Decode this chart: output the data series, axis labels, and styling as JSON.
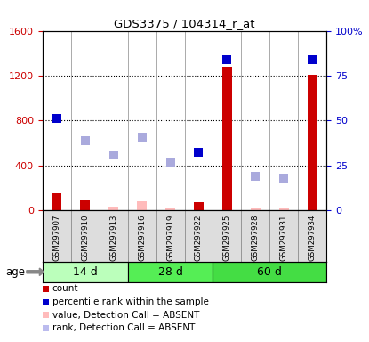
{
  "title": "GDS3375 / 104314_r_at",
  "samples": [
    "GSM297907",
    "GSM297910",
    "GSM297913",
    "GSM297916",
    "GSM297919",
    "GSM297922",
    "GSM297925",
    "GSM297928",
    "GSM297931",
    "GSM297934"
  ],
  "count_present": [
    150,
    90,
    null,
    null,
    null,
    70,
    1280,
    null,
    null,
    1210
  ],
  "count_absent": [
    null,
    null,
    30,
    80,
    20,
    null,
    null,
    15,
    20,
    null
  ],
  "rank_present_dark": [
    820,
    null,
    null,
    null,
    null,
    520,
    1340,
    null,
    null,
    1340
  ],
  "rank_absent_light": [
    null,
    620,
    490,
    650,
    430,
    null,
    null,
    300,
    290,
    null
  ],
  "ylim_left": [
    0,
    1600
  ],
  "ylim_right": [
    0,
    100
  ],
  "yticks_left": [
    0,
    400,
    800,
    1200,
    1600
  ],
  "ytick_labels_left": [
    "0",
    "400",
    "800",
    "1200",
    "1600"
  ],
  "yticks_right": [
    0,
    25,
    50,
    75,
    100
  ],
  "ytick_labels_right": [
    "0",
    "25",
    "50",
    "75",
    "100%"
  ],
  "groups": [
    {
      "label": "14 d",
      "start": 0,
      "end": 2,
      "color": "#bbffbb"
    },
    {
      "label": "28 d",
      "start": 3,
      "end": 5,
      "color": "#55ee55"
    },
    {
      "label": "60 d",
      "start": 6,
      "end": 9,
      "color": "#44dd44"
    }
  ],
  "legend_items": [
    {
      "color": "#cc0000",
      "label": "count"
    },
    {
      "color": "#0000cc",
      "label": "percentile rank within the sample"
    },
    {
      "color": "#ffbbbb",
      "label": "value, Detection Call = ABSENT"
    },
    {
      "color": "#bbbbee",
      "label": "rank, Detection Call = ABSENT"
    }
  ],
  "left_axis_color": "#cc0000",
  "right_axis_color": "#0000cc",
  "age_label": "age"
}
